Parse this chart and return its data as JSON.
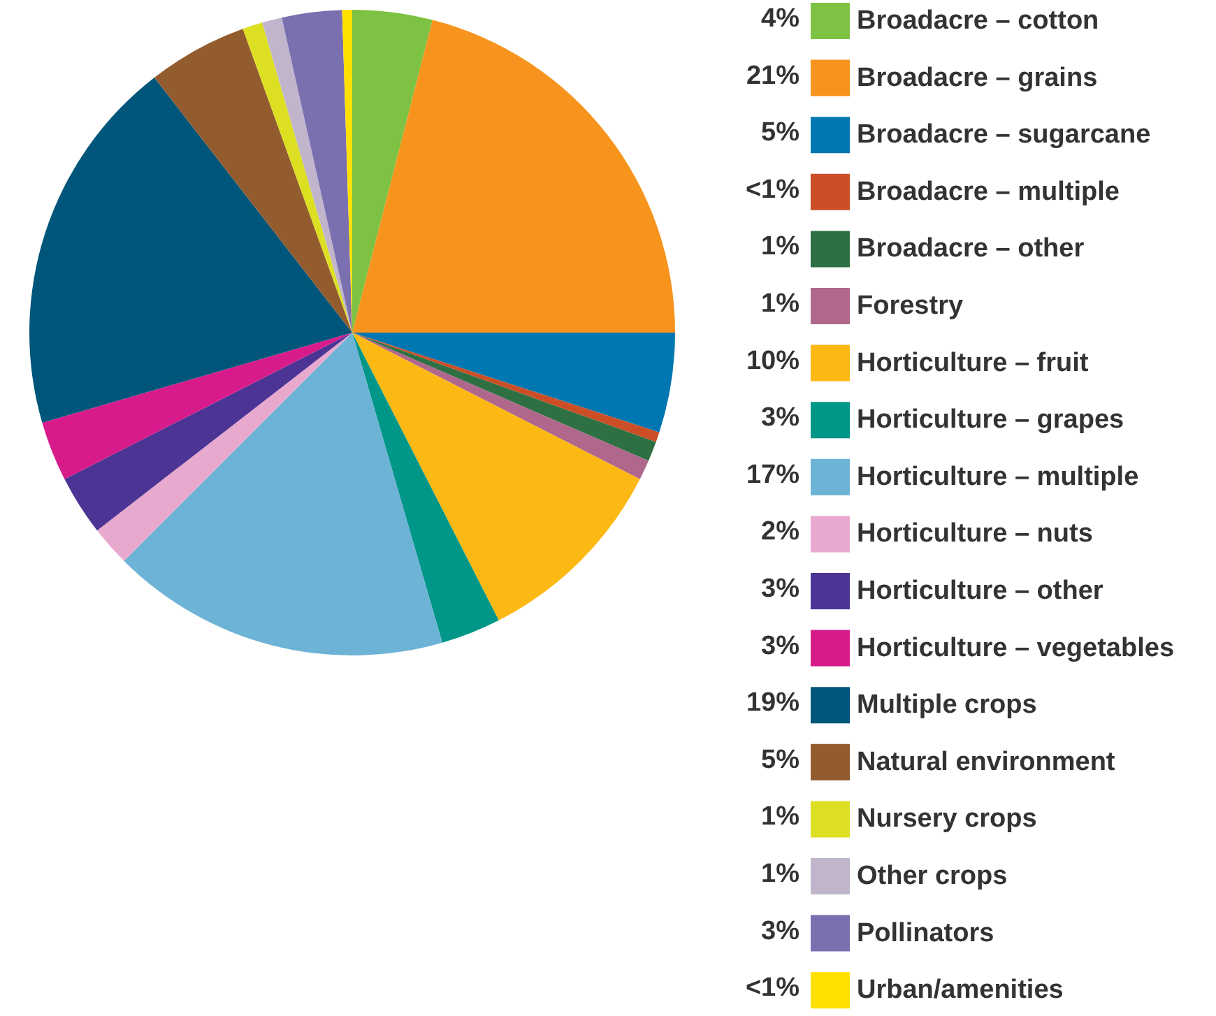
{
  "chart_data": {
    "type": "pie",
    "categories": [
      "Broadacre – cotton",
      "Broadacre – grains",
      "Broadacre – sugarcane",
      "Broadacre – multiple",
      "Broadacre – other",
      "Forestry",
      "Horticulture – fruit",
      "Horticulture – grapes",
      "Horticulture – multiple",
      "Horticulture – nuts",
      "Horticulture – other",
      "Horticulture – vegetables",
      "Multiple crops",
      "Natural environment",
      "Nursery crops",
      "Other crops",
      "Pollinators",
      "Urban/amenities"
    ],
    "values": [
      4,
      21,
      5,
      0.5,
      1,
      1,
      10,
      3,
      17,
      2,
      3,
      3,
      19,
      5,
      1,
      1,
      3,
      0.5
    ],
    "value_labels": [
      "4%",
      "21%",
      "5%",
      "<1%",
      "1%",
      "1%",
      "10%",
      "3%",
      "17%",
      "2%",
      "3%",
      "3%",
      "19%",
      "5%",
      "1%",
      "1%",
      "3%",
      "<1%"
    ],
    "colors": [
      "#7dc242",
      "#f7941d",
      "#0077b0",
      "#cc4e27",
      "#2e7043",
      "#b0678c",
      "#fdb913",
      "#009688",
      "#6db3d6",
      "#e8a9cf",
      "#4b3494",
      "#d81b8b",
      "#00557a",
      "#935c2f",
      "#dde022",
      "#c0b5cb",
      "#7a70b0",
      "#ffe100"
    ],
    "legend": "right"
  }
}
